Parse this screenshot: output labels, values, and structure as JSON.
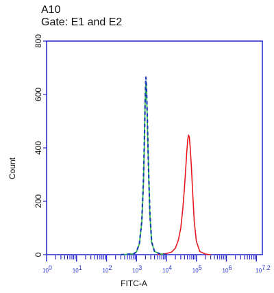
{
  "title": "A10",
  "subtitle": "Gate: E1 and E2",
  "colors": {
    "axis": "#2222cc",
    "series_red": "#e8191e",
    "series_green": "#22bb33",
    "series_blue_dashed": "#1f3fb8"
  },
  "chart_data": {
    "type": "line",
    "title": "A10",
    "subtitle": "Gate: E1 and E2",
    "xlabel": "FITC-A",
    "ylabel": "Count",
    "xscale": "log",
    "xlim": [
      1,
      15848932
    ],
    "ylim": [
      0,
      800
    ],
    "yticks": [
      0,
      200,
      400,
      600,
      800
    ],
    "xtick_labels": [
      {
        "label": "10",
        "exp": "0",
        "value": 1
      },
      {
        "label": "10",
        "exp": "1",
        "value": 10
      },
      {
        "label": "10",
        "exp": "2",
        "value": 100
      },
      {
        "label": "10",
        "exp": "3",
        "value": 1000
      },
      {
        "label": "10",
        "exp": "4",
        "value": 10000
      },
      {
        "label": "10",
        "exp": "5",
        "value": 100000
      },
      {
        "label": "10",
        "exp": "6",
        "value": 1000000
      },
      {
        "label": "10",
        "exp": "7.2",
        "value": 15848932
      }
    ],
    "grid": false,
    "series": [
      {
        "color": "#e8191e",
        "style": "solid",
        "points": [
          [
            5000,
            0
          ],
          [
            10000,
            4
          ],
          [
            15000,
            10
          ],
          [
            20000,
            25
          ],
          [
            25000,
            55
          ],
          [
            30000,
            100
          ],
          [
            35000,
            170
          ],
          [
            40000,
            250
          ],
          [
            44000,
            325
          ],
          [
            48000,
            390
          ],
          [
            52000,
            435
          ],
          [
            55000,
            448
          ],
          [
            58000,
            440
          ],
          [
            62000,
            400
          ],
          [
            68000,
            330
          ],
          [
            75000,
            230
          ],
          [
            85000,
            120
          ],
          [
            100000,
            50
          ],
          [
            130000,
            12
          ],
          [
            200000,
            2
          ],
          [
            300000,
            0
          ]
        ]
      },
      {
        "color": "#22bb33",
        "style": "solid",
        "points": [
          [
            300,
            0
          ],
          [
            800,
            3
          ],
          [
            1000,
            10
          ],
          [
            1250,
            40
          ],
          [
            1500,
            120
          ],
          [
            1700,
            260
          ],
          [
            1850,
            430
          ],
          [
            1950,
            570
          ],
          [
            2050,
            650
          ],
          [
            2150,
            620
          ],
          [
            2300,
            500
          ],
          [
            2500,
            330
          ],
          [
            2800,
            150
          ],
          [
            3200,
            45
          ],
          [
            4000,
            12
          ],
          [
            6000,
            3
          ],
          [
            10000,
            0
          ]
        ]
      },
      {
        "color": "#1f3fb8",
        "style": "dashed",
        "points": [
          [
            300,
            0
          ],
          [
            800,
            3
          ],
          [
            1000,
            10
          ],
          [
            1250,
            42
          ],
          [
            1500,
            125
          ],
          [
            1700,
            270
          ],
          [
            1850,
            440
          ],
          [
            1950,
            580
          ],
          [
            2050,
            665
          ],
          [
            2150,
            630
          ],
          [
            2300,
            510
          ],
          [
            2500,
            335
          ],
          [
            2800,
            155
          ],
          [
            3200,
            48
          ],
          [
            4000,
            12
          ],
          [
            6000,
            3
          ],
          [
            10000,
            0
          ]
        ]
      }
    ]
  }
}
